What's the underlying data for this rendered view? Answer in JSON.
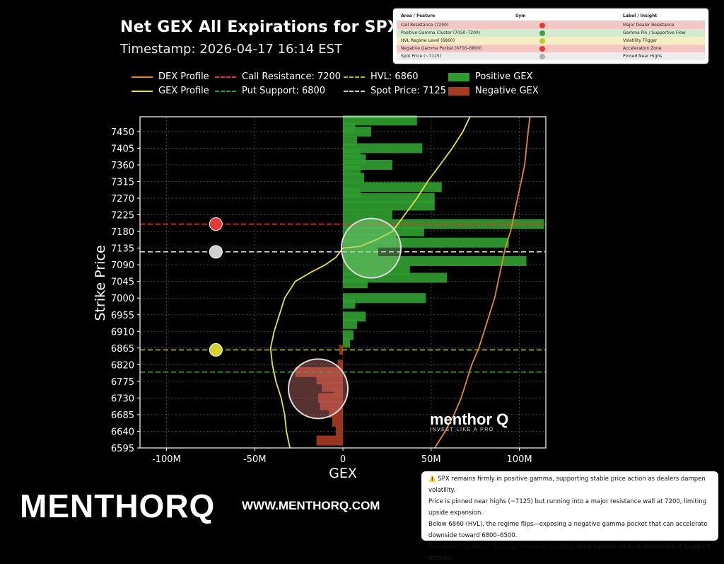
{
  "header": {
    "title": "Net GEX All Expirations for SPX",
    "timestamp": "Timestamp: 2026-04-17 16:14 EST"
  },
  "legend": [
    {
      "label": "DEX Profile",
      "kind": "line",
      "color": "#e08a2a"
    },
    {
      "label": "GEX Profile",
      "kind": "line",
      "color": "#e6e24a"
    },
    {
      "label": "Call Resistance: 7200",
      "kind": "dash",
      "color": "#e53935"
    },
    {
      "label": "Put Support: 6800",
      "kind": "dash",
      "color": "#2e9e33"
    },
    {
      "label": "HVL: 6860",
      "kind": "dash",
      "color": "#b8b41c"
    },
    {
      "label": "Spot Price: 7125",
      "kind": "dash",
      "color": "#cfcfcf"
    },
    {
      "label": "Positive GEX",
      "kind": "box",
      "color": "#2f9c2f"
    },
    {
      "label": "Negative GEX",
      "kind": "box",
      "color": "#a63a22"
    }
  ],
  "insight_table": {
    "headers": [
      "Area / Feature",
      "Sym",
      "Label / Insight"
    ],
    "rows": [
      {
        "feature": "Call Resistance (7200)",
        "color": "#e53935",
        "insight": "Major Dealer Resistance",
        "bg": "#f4c7c5"
      },
      {
        "feature": "Positive Gamma Cluster (7050–7200)",
        "color": "#43a047",
        "insight": "Gamma Pin / Supportive Flow",
        "bg": "#d3ecd1"
      },
      {
        "feature": "HVL Regime Level (6860)",
        "color": "#c0ca33",
        "insight": "Volatility Trigger",
        "bg": "#f7efc4"
      },
      {
        "feature": "Negative Gamma Pocket (6700–6800)",
        "color": "#e53935",
        "insight": "Acceleration Zone",
        "bg": "#f4c7c5"
      },
      {
        "feature": "Spot Price (~7125)",
        "color": "#b0b0b0",
        "insight": "Pinned Near Highs",
        "bg": "#ececec"
      }
    ]
  },
  "summary": {
    "icon": "⚠️",
    "line1": "SPX remains firmly in positive gamma, supporting stable price action as dealers dampen volatility.",
    "line2": "Price is pinned near highs (~7125) but running into a major resistance wall at 7200, limiting upside expansion.",
    "line3": "Below 6860 (HVL), the regime flips—exposing a negative gamma pocket that can accelerate downside toward 6800–6500.",
    "line4_prefix": "The market is stable, but asymmetry is building: ",
    "line4_bold": "slow upside vs fast downside if support breaks."
  },
  "brand": {
    "name": "MENTHORQ",
    "url": "WWW.MENTHORQ.COM",
    "watermark_name": "menthor Q",
    "watermark_tag": "INVEST LIKE A PRO"
  },
  "chart_data": {
    "type": "bar",
    "orientation": "horizontal",
    "xlabel": "GEX",
    "ylabel": "Strike Price",
    "xlim": [
      -115,
      115
    ],
    "ylim": [
      6595,
      7490
    ],
    "x_ticks": [
      -100,
      -50,
      0,
      50,
      100
    ],
    "x_tick_labels": [
      "-100M",
      "-50M",
      "0",
      "50M",
      "100M"
    ],
    "y_ticks": [
      6595,
      6640,
      6685,
      6730,
      6775,
      6820,
      6865,
      6910,
      6955,
      7000,
      7045,
      7090,
      7135,
      7180,
      7225,
      7270,
      7315,
      7360,
      7405,
      7450
    ],
    "grid": true,
    "bars": [
      {
        "strike": 7480,
        "gex": 42
      },
      {
        "strike": 7460,
        "gex": 7
      },
      {
        "strike": 7450,
        "gex": 16
      },
      {
        "strike": 7425,
        "gex": 8
      },
      {
        "strike": 7405,
        "gex": 45
      },
      {
        "strike": 7390,
        "gex": 10
      },
      {
        "strike": 7375,
        "gex": 13
      },
      {
        "strike": 7360,
        "gex": 28
      },
      {
        "strike": 7345,
        "gex": 10
      },
      {
        "strike": 7325,
        "gex": 12
      },
      {
        "strike": 7300,
        "gex": 56
      },
      {
        "strike": 7285,
        "gex": 10
      },
      {
        "strike": 7270,
        "gex": 52
      },
      {
        "strike": 7250,
        "gex": 52
      },
      {
        "strike": 7225,
        "gex": 28
      },
      {
        "strike": 7200,
        "gex": 114
      },
      {
        "strike": 7180,
        "gex": 46
      },
      {
        "strike": 7160,
        "gex": 30
      },
      {
        "strike": 7150,
        "gex": 94
      },
      {
        "strike": 7125,
        "gex": 20
      },
      {
        "strike": 7100,
        "gex": 104
      },
      {
        "strike": 7075,
        "gex": 38
      },
      {
        "strike": 7055,
        "gex": 59
      },
      {
        "strike": 7040,
        "gex": 14
      },
      {
        "strike": 7000,
        "gex": 47
      },
      {
        "strike": 6985,
        "gex": 7
      },
      {
        "strike": 6950,
        "gex": 13
      },
      {
        "strike": 6930,
        "gex": 8
      },
      {
        "strike": 6900,
        "gex": 6
      },
      {
        "strike": 6880,
        "gex": 4
      },
      {
        "strike": 6860,
        "gex": -2
      },
      {
        "strike": 6820,
        "gex": -3
      },
      {
        "strike": 6800,
        "gex": -27
      },
      {
        "strike": 6780,
        "gex": -15
      },
      {
        "strike": 6760,
        "gex": -12
      },
      {
        "strike": 6745,
        "gex": -5
      },
      {
        "strike": 6730,
        "gex": -14
      },
      {
        "strike": 6710,
        "gex": -13
      },
      {
        "strike": 6690,
        "gex": -8
      },
      {
        "strike": 6665,
        "gex": -6
      },
      {
        "strike": 6640,
        "gex": -4
      },
      {
        "strike": 6615,
        "gex": -15
      }
    ],
    "gex_profile": [
      [
        -30,
        6595
      ],
      [
        -32,
        6640
      ],
      [
        -33,
        6685
      ],
      [
        -35,
        6730
      ],
      [
        -38,
        6775
      ],
      [
        -40,
        6820
      ],
      [
        -41,
        6865
      ],
      [
        -39,
        6910
      ],
      [
        -36,
        6955
      ],
      [
        -33,
        7000
      ],
      [
        -27,
        7045
      ],
      [
        -18,
        7070
      ],
      [
        -10,
        7090
      ],
      [
        -4,
        7110
      ],
      [
        0,
        7135
      ],
      [
        10,
        7140
      ],
      [
        20,
        7160
      ],
      [
        28,
        7180
      ],
      [
        35,
        7225
      ],
      [
        42,
        7270
      ],
      [
        48,
        7315
      ],
      [
        55,
        7360
      ],
      [
        62,
        7405
      ],
      [
        68,
        7450
      ],
      [
        72,
        7490
      ]
    ],
    "dex_profile": [
      [
        52,
        6595
      ],
      [
        58,
        6640
      ],
      [
        63,
        6685
      ],
      [
        67,
        6730
      ],
      [
        70,
        6775
      ],
      [
        73,
        6820
      ],
      [
        77,
        6865
      ],
      [
        80,
        6910
      ],
      [
        83,
        6955
      ],
      [
        86,
        7000
      ],
      [
        88,
        7045
      ],
      [
        90,
        7090
      ],
      [
        92,
        7135
      ],
      [
        95,
        7180
      ],
      [
        97,
        7225
      ],
      [
        99,
        7270
      ],
      [
        101,
        7315
      ],
      [
        103,
        7360
      ],
      [
        104,
        7405
      ],
      [
        105,
        7450
      ],
      [
        106,
        7490
      ]
    ],
    "levels": [
      {
        "name": "Call Resistance",
        "value": 7200,
        "color": "#e53935"
      },
      {
        "name": "Spot Price",
        "value": 7125,
        "color": "#cfcfcf"
      },
      {
        "name": "HVL",
        "value": 6860,
        "color": "#b8b41c"
      },
      {
        "name": "Put Support",
        "value": 6800,
        "color": "#2e9e33"
      }
    ],
    "markers": [
      {
        "x": -72,
        "y": 7200,
        "color": "#e53935"
      },
      {
        "x": -72,
        "y": 7125,
        "color": "#cfcfcf"
      },
      {
        "x": -72,
        "y": 6860,
        "color": "#d4d22e"
      }
    ],
    "highlights": [
      {
        "x": 16,
        "y": 7135,
        "color": "#7ed07e"
      },
      {
        "x": -14,
        "y": 6755,
        "color": "#c06a6a"
      }
    ]
  }
}
